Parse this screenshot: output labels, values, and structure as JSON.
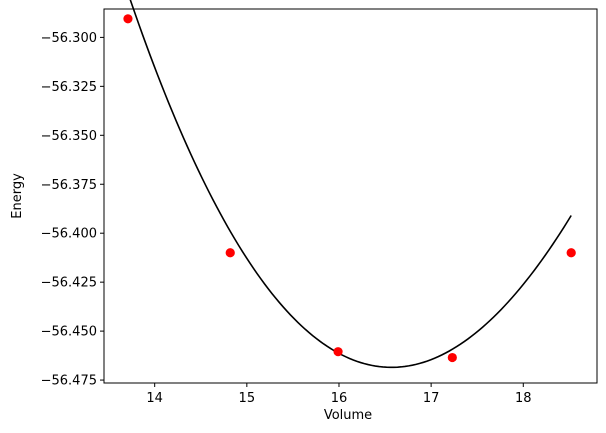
{
  "chart_data": {
    "type": "scatter",
    "xlabel": "Volume",
    "ylabel": "Energy",
    "xlim": [
      13.45,
      18.8
    ],
    "ylim": [
      -56.4765,
      -56.2855
    ],
    "xticks": [
      14,
      15,
      16,
      17,
      18
    ],
    "xtick_labels": [
      "14",
      "15",
      "16",
      "17",
      "18"
    ],
    "yticks": [
      -56.3,
      -56.325,
      -56.35,
      -56.375,
      -56.4,
      -56.425,
      -56.45,
      -56.475
    ],
    "ytick_labels": [
      "−56.300",
      "−56.325",
      "−56.350",
      "−56.375",
      "−56.400",
      "−56.425",
      "−56.450",
      "−56.475"
    ],
    "grid": false,
    "series": [
      {
        "kind": "points",
        "color": "#ff0000",
        "x": [
          13.71,
          14.82,
          15.99,
          17.23,
          18.52
        ],
        "y": [
          -56.2905,
          -56.41,
          -56.4605,
          -56.4635,
          -56.41
        ]
      },
      {
        "kind": "fit-curve",
        "color": "#000000",
        "x_range": [
          13.71,
          18.52
        ],
        "min_x": 16.57,
        "min_y": -56.4685,
        "coefficients_about_min": [
          -56.4685,
          0,
          0.0216,
          -0.00062
        ]
      }
    ]
  }
}
